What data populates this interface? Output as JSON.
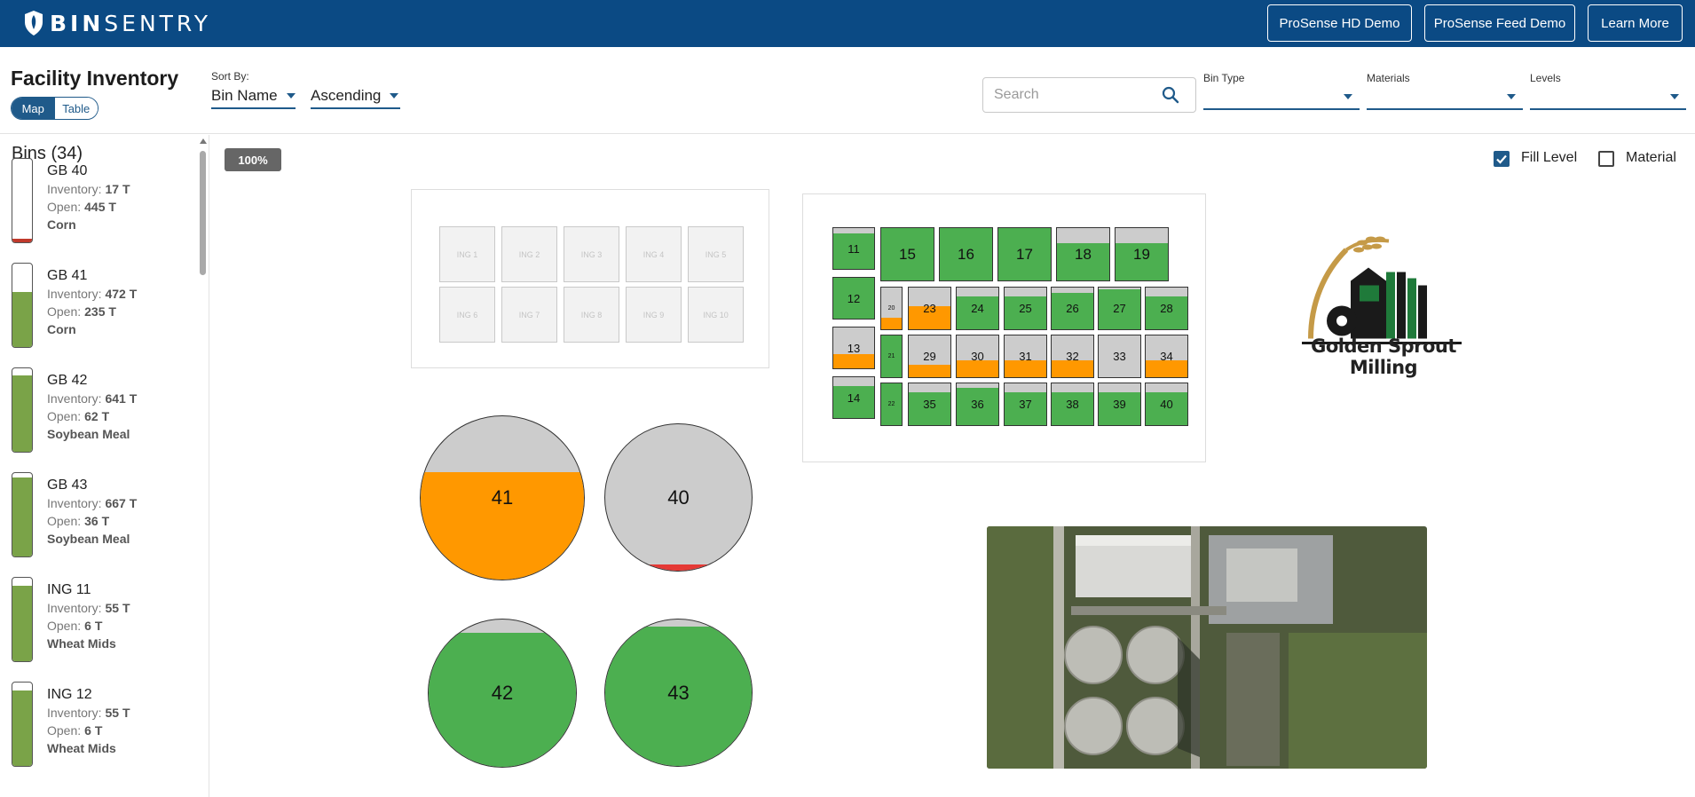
{
  "header": {
    "brand_bold": "BIN",
    "brand_light": "SENTRY",
    "buttons": [
      "ProSense HD Demo",
      "ProSense Feed Demo",
      "Learn More"
    ]
  },
  "toolbar": {
    "title": "Facility Inventory",
    "view_options": [
      "Map",
      "Table"
    ],
    "selected_view": "Map",
    "sort_by_label": "Sort By:",
    "sort_field": "Bin Name",
    "sort_order": "Ascending",
    "search_placeholder": "Search",
    "filters": {
      "bin_type_label": "Bin Type",
      "materials_label": "Materials",
      "levels_label": "Levels"
    }
  },
  "sidebar": {
    "title": "Bins (34)",
    "inventory_label": "Inventory:",
    "open_label": "Open:",
    "bins": [
      {
        "name": "GB 40",
        "inventory": "17 T",
        "open": "445 T",
        "material": "Corn",
        "fill": 0.04,
        "color": "#c0392b"
      },
      {
        "name": "GB 41",
        "inventory": "472 T",
        "open": "235 T",
        "material": "Corn",
        "fill": 0.66,
        "color": "#7aa348"
      },
      {
        "name": "GB 42",
        "inventory": "641 T",
        "open": "62 T",
        "material": "Soybean Meal",
        "fill": 0.91,
        "color": "#7aa348"
      },
      {
        "name": "GB 43",
        "inventory": "667 T",
        "open": "36 T",
        "material": "Soybean Meal",
        "fill": 0.95,
        "color": "#7aa348"
      },
      {
        "name": "ING 11",
        "inventory": "55 T",
        "open": "6 T",
        "material": "Wheat Mids",
        "fill": 0.9,
        "color": "#7aa348"
      },
      {
        "name": "ING 12",
        "inventory": "55 T",
        "open": "6 T",
        "material": "Wheat Mids",
        "fill": 0.9,
        "color": "#7aa348"
      }
    ]
  },
  "map": {
    "zoom": "100%",
    "fill_level_label": "Fill Level",
    "material_label": "Material",
    "fill_level_checked": true,
    "material_checked": false,
    "colors": {
      "green": "#4caf50",
      "orange": "#ff9800",
      "red": "#e53935",
      "empty": "#cccccc"
    },
    "ingredient_bins": [
      "ING 1",
      "ING 2",
      "ING 3",
      "ING 4",
      "ING 5",
      "ING 6",
      "ING 7",
      "ING 8",
      "ING 9",
      "ING 10"
    ],
    "square_bins": [
      {
        "label": "11",
        "fill": 0.88,
        "color": "green"
      },
      {
        "label": "15",
        "fill": 1.0,
        "color": "green"
      },
      {
        "label": "16",
        "fill": 1.0,
        "color": "green"
      },
      {
        "label": "17",
        "fill": 1.0,
        "color": "green"
      },
      {
        "label": "18",
        "fill": 0.72,
        "color": "green"
      },
      {
        "label": "19",
        "fill": 0.72,
        "color": "green"
      },
      {
        "label": "12",
        "fill": 1.0,
        "color": "green"
      },
      {
        "label": "13",
        "fill": 0.34,
        "color": "orange"
      },
      {
        "label": "14",
        "fill": 0.78,
        "color": "green"
      },
      {
        "label": "20",
        "fill": 0.28,
        "color": "orange"
      },
      {
        "label": "21",
        "fill": 1.0,
        "color": "green"
      },
      {
        "label": "22",
        "fill": 1.0,
        "color": "green"
      },
      {
        "label": "23",
        "fill": 0.55,
        "color": "orange"
      },
      {
        "label": "24",
        "fill": 0.78,
        "color": "green"
      },
      {
        "label": "25",
        "fill": 0.78,
        "color": "green"
      },
      {
        "label": "26",
        "fill": 0.88,
        "color": "green"
      },
      {
        "label": "27",
        "fill": 0.95,
        "color": "green"
      },
      {
        "label": "28",
        "fill": 0.78,
        "color": "green"
      },
      {
        "label": "29",
        "fill": 0.3,
        "color": "orange"
      },
      {
        "label": "30",
        "fill": 0.4,
        "color": "orange"
      },
      {
        "label": "31",
        "fill": 0.4,
        "color": "orange"
      },
      {
        "label": "32",
        "fill": 0.4,
        "color": "orange"
      },
      {
        "label": "33",
        "fill": 0.0,
        "color": "orange"
      },
      {
        "label": "34",
        "fill": 0.4,
        "color": "orange"
      },
      {
        "label": "35",
        "fill": 0.78,
        "color": "green"
      },
      {
        "label": "36",
        "fill": 0.9,
        "color": "green"
      },
      {
        "label": "37",
        "fill": 0.78,
        "color": "green"
      },
      {
        "label": "38",
        "fill": 0.78,
        "color": "green"
      },
      {
        "label": "39",
        "fill": 0.78,
        "color": "green"
      },
      {
        "label": "40",
        "fill": 0.78,
        "color": "green"
      }
    ],
    "round_bins": [
      {
        "label": "41",
        "fill": 0.66,
        "color": "orange"
      },
      {
        "label": "40",
        "fill": 0.04,
        "color": "red"
      },
      {
        "label": "42",
        "fill": 0.91,
        "color": "green"
      },
      {
        "label": "43",
        "fill": 0.95,
        "color": "green"
      }
    ],
    "company_name": "Golden Sprout Milling"
  }
}
